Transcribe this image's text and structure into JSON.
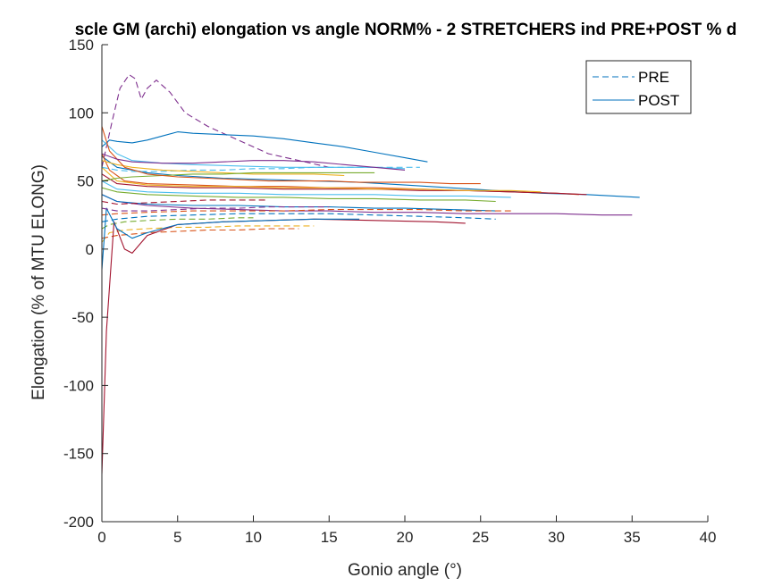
{
  "chart_data": {
    "type": "line",
    "title": "scle GM (archi) elongation vs angle NORM% - 2 STRETCHERS ind PRE+POST % d",
    "xlabel": "Gonio angle (°)",
    "ylabel": "Elongation (% of MTU ELONG)",
    "xlim": [
      0,
      40
    ],
    "ylim": [
      -200,
      150
    ],
    "xticks": [
      0,
      5,
      10,
      15,
      20,
      25,
      30,
      35,
      40
    ],
    "yticks": [
      -200,
      -150,
      -100,
      -50,
      0,
      50,
      100,
      150
    ],
    "xtick_labels": [
      "0",
      "5",
      "10",
      "15",
      "20",
      "25",
      "30",
      "35",
      "40"
    ],
    "ytick_labels": [
      "-200",
      "-150",
      "-100",
      "-50",
      "0",
      "50",
      "100",
      "150"
    ],
    "grid": false,
    "legend_position": "top-right",
    "legend": [
      {
        "label": "PRE",
        "style": "dashed",
        "color": "#0072BD"
      },
      {
        "label": "POST",
        "style": "solid",
        "color": "#0072BD"
      }
    ],
    "colors": [
      "#0072BD",
      "#D95319",
      "#EDB120",
      "#7E2F8E",
      "#77AC30",
      "#4DBEEE",
      "#A2142F"
    ],
    "series": [
      {
        "style": "dashed",
        "color": "#7E2F8E",
        "x": [
          0,
          0.3,
          0.7,
          1.2,
          1.8,
          2.2,
          2.6,
          3.0,
          3.6,
          4.5,
          5.5,
          7,
          9,
          11,
          13,
          15
        ],
        "y": [
          60,
          75,
          95,
          118,
          128,
          125,
          110,
          118,
          124,
          115,
          100,
          90,
          80,
          70,
          65,
          60
        ]
      },
      {
        "style": "solid",
        "color": "#0072BD",
        "x": [
          0,
          0.5,
          1,
          2,
          3,
          4,
          5,
          6,
          8,
          10,
          12,
          14,
          16,
          18,
          20,
          21.5
        ],
        "y": [
          75,
          80,
          79,
          78,
          80,
          83,
          86,
          85,
          84,
          83,
          81,
          78,
          75,
          71,
          67,
          64
        ]
      },
      {
        "style": "solid",
        "color": "#0072BD",
        "x": [
          0,
          1,
          3,
          5,
          8,
          11,
          14,
          17,
          20,
          23,
          26,
          29,
          32,
          35.5
        ],
        "y": [
          68,
          60,
          56,
          54,
          52,
          51,
          50,
          49,
          47,
          45,
          43,
          41,
          40,
          38
        ]
      },
      {
        "style": "solid",
        "color": "#7E2F8E",
        "x": [
          0,
          1,
          3,
          6,
          9,
          12,
          15,
          18,
          21,
          24,
          27,
          30,
          33,
          35
        ],
        "y": [
          40,
          35,
          32,
          30,
          29,
          28,
          28,
          27,
          27,
          26,
          26,
          26,
          25,
          25
        ]
      },
      {
        "style": "solid",
        "color": "#D95319",
        "x": [
          0,
          0.5,
          1.5,
          3,
          6,
          9,
          12,
          15,
          18,
          21,
          24,
          27,
          30,
          31.5
        ],
        "y": [
          70,
          58,
          50,
          48,
          47,
          46,
          46,
          45,
          45,
          44,
          43,
          42,
          41,
          40
        ]
      },
      {
        "style": "solid",
        "color": "#A2142F",
        "x": [
          0,
          1,
          3,
          6,
          9,
          12,
          15,
          18,
          21,
          24,
          27,
          30,
          32
        ],
        "y": [
          55,
          48,
          46,
          45,
          45,
          44,
          44,
          44,
          43,
          43,
          42,
          41,
          40
        ]
      },
      {
        "style": "solid",
        "color": "#EDB120",
        "x": [
          0,
          1,
          3,
          6,
          9,
          12,
          15,
          18,
          21,
          24,
          27,
          29
        ],
        "y": [
          60,
          50,
          47,
          46,
          46,
          45,
          45,
          44,
          44,
          43,
          43,
          42
        ]
      },
      {
        "style": "solid",
        "color": "#77AC30",
        "x": [
          0,
          1,
          3,
          6,
          9,
          12,
          15,
          18,
          21,
          24,
          26
        ],
        "y": [
          45,
          42,
          40,
          39,
          38,
          38,
          37,
          37,
          36,
          36,
          35
        ]
      },
      {
        "style": "solid",
        "color": "#4DBEEE",
        "x": [
          0,
          1,
          3,
          6,
          9,
          12,
          15,
          18,
          21,
          24,
          27
        ],
        "y": [
          50,
          44,
          42,
          41,
          41,
          40,
          40,
          40,
          39,
          39,
          38
        ]
      },
      {
        "style": "solid",
        "color": "#0072BD",
        "x": [
          0,
          1,
          3,
          6,
          9,
          12,
          15,
          18,
          20,
          23,
          26
        ],
        "y": [
          40,
          35,
          33,
          32,
          32,
          31,
          31,
          30,
          30,
          29,
          28
        ]
      },
      {
        "style": "dashed",
        "color": "#0072BD",
        "x": [
          0,
          1,
          3,
          6,
          9,
          12,
          15,
          18,
          21,
          24,
          26
        ],
        "y": [
          20,
          22,
          24,
          25,
          26,
          26,
          26,
          25,
          24,
          23,
          22
        ]
      },
      {
        "style": "dashed",
        "color": "#D95319",
        "x": [
          0,
          1,
          3,
          6,
          9,
          12,
          15,
          18,
          21,
          24,
          27
        ],
        "y": [
          25,
          26,
          27,
          28,
          28,
          28,
          29,
          29,
          29,
          28,
          28
        ]
      },
      {
        "style": "dashed",
        "color": "#EDB120",
        "x": [
          0,
          0.5,
          1.5,
          3,
          5,
          7,
          9,
          11,
          13,
          14
        ],
        "y": [
          5,
          12,
          14,
          15,
          16,
          16,
          17,
          17,
          17,
          17
        ]
      },
      {
        "style": "dashed",
        "color": "#77AC30",
        "x": [
          0,
          0.5,
          1.5,
          3,
          5,
          7,
          9,
          10
        ],
        "y": [
          15,
          18,
          20,
          21,
          22,
          22,
          23,
          23
        ]
      },
      {
        "style": "dashed",
        "color": "#4DBEEE",
        "x": [
          0,
          1,
          2,
          4,
          6,
          8,
          10,
          12,
          14,
          16,
          18,
          20,
          21
        ],
        "y": [
          60,
          58,
          57,
          57,
          58,
          58,
          59,
          59,
          60,
          60,
          60,
          60,
          60
        ]
      },
      {
        "style": "solid",
        "color": "#4DBEEE",
        "x": [
          0,
          1,
          2,
          4,
          6,
          9,
          12,
          15,
          18,
          20
        ],
        "y": [
          80,
          70,
          65,
          63,
          62,
          61,
          60,
          60,
          60,
          59
        ]
      },
      {
        "style": "dashed",
        "color": "#D95319",
        "x": [
          0,
          1,
          3,
          5,
          7,
          9,
          11,
          13
        ],
        "y": [
          8,
          10,
          12,
          13,
          14,
          14,
          15,
          15
        ]
      },
      {
        "style": "solid",
        "color": "#A2142F",
        "x": [
          0,
          0.3,
          0.8,
          1.5,
          2,
          3,
          5,
          8,
          11,
          14,
          18,
          22,
          24
        ],
        "y": [
          -165,
          -60,
          20,
          0,
          -3,
          10,
          18,
          20,
          21,
          22,
          21,
          20,
          19
        ]
      },
      {
        "style": "solid",
        "color": "#0072BD",
        "x": [
          0,
          0.3,
          1,
          2,
          3,
          5,
          8,
          11,
          14,
          17
        ],
        "y": [
          -15,
          30,
          15,
          8,
          12,
          18,
          20,
          21,
          22,
          22
        ]
      },
      {
        "style": "dashed",
        "color": "#7E2F8E",
        "x": [
          0,
          1,
          3,
          5,
          7,
          9,
          11,
          13,
          15
        ],
        "y": [
          30,
          28,
          28,
          29,
          30,
          30,
          31,
          31,
          31
        ]
      },
      {
        "style": "solid",
        "color": "#EDB120",
        "x": [
          0,
          1,
          2,
          4,
          6,
          8,
          10,
          12,
          14,
          16
        ],
        "y": [
          65,
          62,
          60,
          58,
          57,
          56,
          55,
          55,
          55,
          54
        ]
      },
      {
        "style": "solid",
        "color": "#77AC30",
        "x": [
          0,
          1,
          2,
          4,
          6,
          8,
          10,
          12,
          14,
          16,
          18
        ],
        "y": [
          50,
          52,
          53,
          54,
          55,
          55,
          56,
          56,
          56,
          56,
          56
        ]
      },
      {
        "style": "solid",
        "color": "#D95319",
        "x": [
          0,
          0.5,
          1.5,
          3,
          5,
          7,
          9,
          11,
          13,
          15,
          17,
          19,
          21,
          23,
          25
        ],
        "y": [
          90,
          72,
          60,
          55,
          53,
          52,
          51,
          50,
          50,
          50,
          49,
          49,
          49,
          48,
          48
        ]
      },
      {
        "style": "dashed",
        "color": "#A2142F",
        "x": [
          0,
          1,
          3,
          5,
          7,
          9,
          11
        ],
        "y": [
          35,
          33,
          34,
          35,
          36,
          36,
          36
        ]
      },
      {
        "style": "solid",
        "color": "#7E2F8E",
        "x": [
          0,
          1,
          2,
          4,
          6,
          8,
          10,
          12,
          14,
          16,
          18,
          20
        ],
        "y": [
          70,
          66,
          64,
          63,
          63,
          64,
          65,
          65,
          64,
          62,
          60,
          58
        ]
      }
    ]
  }
}
